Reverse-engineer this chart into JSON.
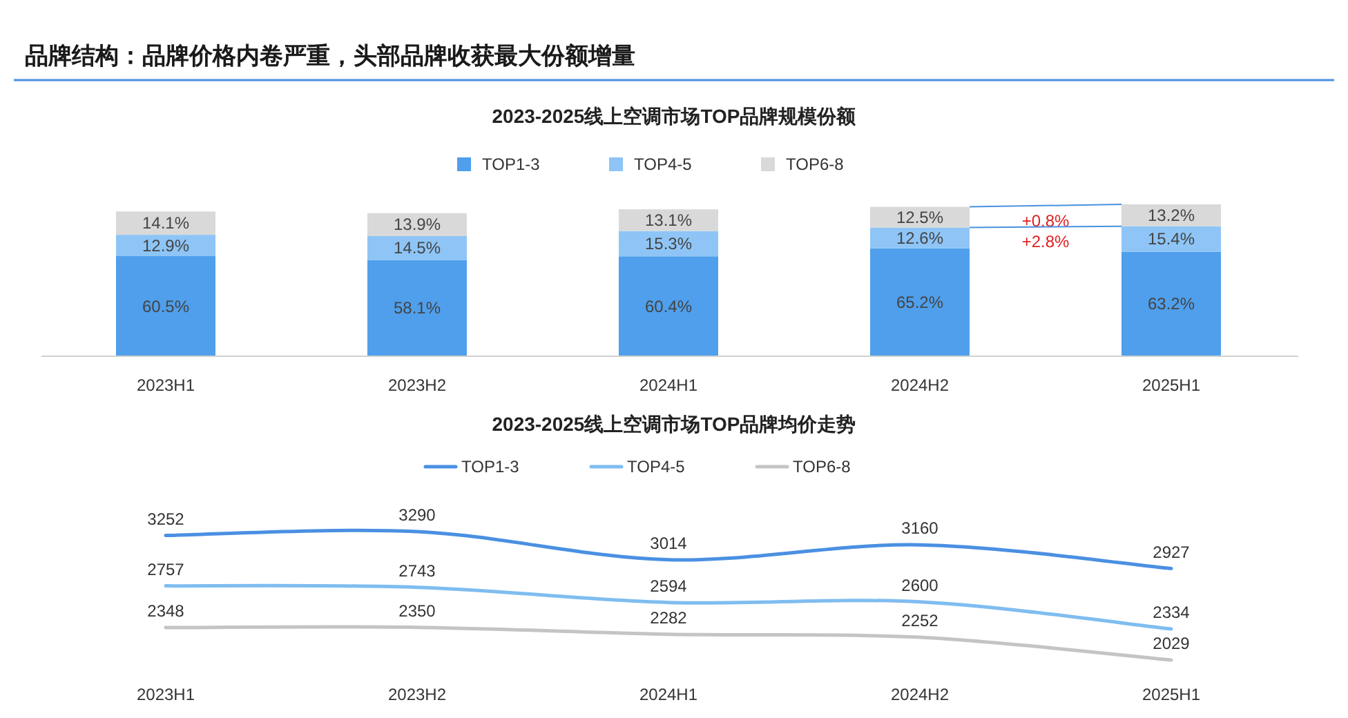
{
  "chart_data": [
    {
      "type": "bar",
      "title": "品牌结构：品牌价格内卷严重，头部品牌收获最大份额增量",
      "subtitle": "2023-2025线上空调市场TOP品牌规模份额",
      "categories": [
        "2023H1",
        "2023H2",
        "2024H1",
        "2024H2",
        "2025H1"
      ],
      "stacked": true,
      "legend": "top",
      "series": [
        {
          "name": "TOP1-3",
          "color": "#4f9fec",
          "values": [
            60.5,
            58.1,
            60.4,
            65.2,
            63.2
          ],
          "value_labels": [
            "60.5%",
            "58.1%",
            "60.4%",
            "65.2%",
            "63.2%"
          ]
        },
        {
          "name": "TOP4-5",
          "color": "#8ec5f6",
          "values": [
            12.9,
            14.5,
            15.3,
            12.6,
            15.4
          ],
          "value_labels": [
            "12.9%",
            "14.5%",
            "15.3%",
            "12.6%",
            "15.4%"
          ]
        },
        {
          "name": "TOP6-8",
          "color": "#d9d9d9",
          "values": [
            14.1,
            13.9,
            13.1,
            12.5,
            13.2
          ],
          "value_labels": [
            "14.1%",
            "13.9%",
            "13.1%",
            "12.5%",
            "13.2%"
          ]
        }
      ],
      "annotations": [
        "+0.8%",
        "+2.8%"
      ]
    },
    {
      "type": "line",
      "title": "2023-2025线上空调市场TOP品牌均价走势",
      "categories": [
        "2023H1",
        "2023H2",
        "2024H1",
        "2024H2",
        "2025H1"
      ],
      "legend": "top",
      "data_labels": true,
      "series": [
        {
          "name": "TOP1-3",
          "color": "#4a90e2",
          "values": [
            3252,
            3290,
            3014,
            3160,
            2927
          ]
        },
        {
          "name": "TOP4-5",
          "color": "#7fbdf0",
          "values": [
            2757,
            2743,
            2594,
            2600,
            2334
          ]
        },
        {
          "name": "TOP6-8",
          "color": "#c4c4c4",
          "values": [
            2348,
            2350,
            2282,
            2252,
            2029
          ]
        }
      ]
    }
  ]
}
